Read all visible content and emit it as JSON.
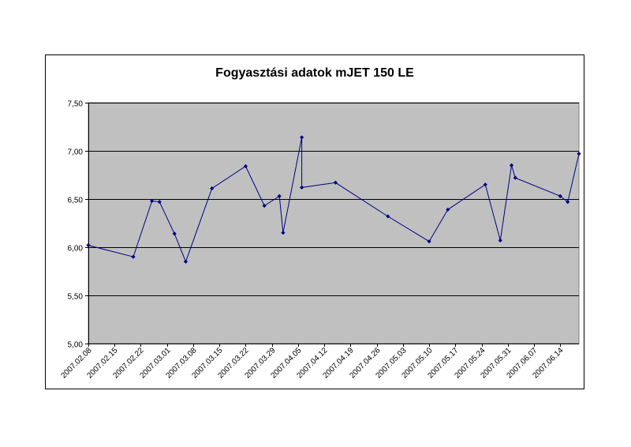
{
  "chart_data": {
    "type": "line",
    "title": "Fogyasztási adatok mJET 150 LE",
    "xlabel": "",
    "ylabel": "",
    "ylim": [
      5.0,
      7.5
    ],
    "yticks": [
      "5,00",
      "5,50",
      "6,00",
      "6,50",
      "7,00",
      "7,50"
    ],
    "xticks": [
      "2007.02.08",
      "2007.02.15",
      "2007.02.22",
      "2007.03.01",
      "2007.03.08",
      "2007.03.15",
      "2007.03.22",
      "2007.03.29",
      "2007.04.05",
      "2007.04.12",
      "2007.04.19",
      "2007.04.26",
      "2007.05.03",
      "2007.05.10",
      "2007.05.17",
      "2007.05.24",
      "2007.05.31",
      "2007.06.07",
      "2007.06.14"
    ],
    "xlim": [
      "2007.02.08",
      "2007.06.19"
    ],
    "grid": "horizontal",
    "plot_background": "#C0C0C0",
    "series": [
      {
        "name": "",
        "color": "#000080",
        "marker": "diamond",
        "points": [
          {
            "x": "2007.02.08",
            "y": 6.02
          },
          {
            "x": "2007.02.20",
            "y": 5.9
          },
          {
            "x": "2007.02.25",
            "y": 6.48
          },
          {
            "x": "2007.02.27",
            "y": 6.47
          },
          {
            "x": "2007.03.03",
            "y": 6.14
          },
          {
            "x": "2007.03.06",
            "y": 5.85
          },
          {
            "x": "2007.03.13",
            "y": 6.61
          },
          {
            "x": "2007.03.22",
            "y": 6.84
          },
          {
            "x": "2007.03.27",
            "y": 6.43
          },
          {
            "x": "2007.03.31",
            "y": 6.53
          },
          {
            "x": "2007.04.01",
            "y": 6.15
          },
          {
            "x": "2007.04.06",
            "y": 7.14
          },
          {
            "x": "2007.04.06",
            "y": 6.62
          },
          {
            "x": "2007.04.15",
            "y": 6.67
          },
          {
            "x": "2007.04.29",
            "y": 6.32
          },
          {
            "x": "2007.05.10",
            "y": 6.06
          },
          {
            "x": "2007.05.15",
            "y": 6.39
          },
          {
            "x": "2007.05.25",
            "y": 6.65
          },
          {
            "x": "2007.05.29",
            "y": 6.07
          },
          {
            "x": "2007.06.01",
            "y": 6.85
          },
          {
            "x": "2007.06.02",
            "y": 6.72
          },
          {
            "x": "2007.06.14",
            "y": 6.53
          },
          {
            "x": "2007.06.16",
            "y": 6.47
          },
          {
            "x": "2007.06.19",
            "y": 6.97
          }
        ]
      }
    ]
  }
}
